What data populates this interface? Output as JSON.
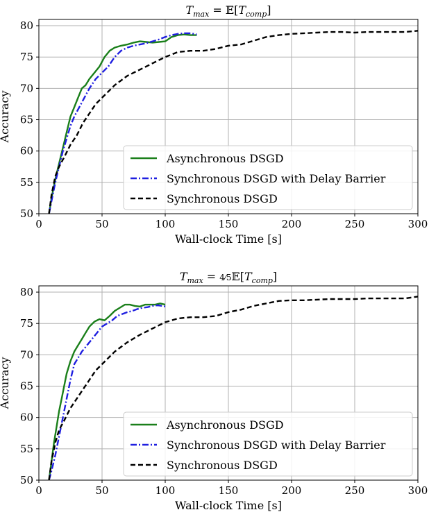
{
  "chart_data": [
    {
      "type": "line",
      "title": "T_max = 𝔼[T_comp]",
      "xlabel": "Wall-clock Time [s]",
      "ylabel": "Accuracy",
      "xlim": [
        0,
        300
      ],
      "ylim": [
        50,
        81
      ],
      "xticks": [
        0,
        50,
        100,
        150,
        200,
        250,
        300
      ],
      "yticks": [
        50,
        55,
        60,
        65,
        70,
        75,
        80
      ],
      "grid": true,
      "legend_position": "lower-right",
      "series": [
        {
          "name": "Asynchronous DSGD",
          "color": "#1a7f1a",
          "style": "solid",
          "x": [
            8,
            10,
            13,
            16,
            19,
            22,
            25,
            28,
            31,
            34,
            37,
            40,
            44,
            48,
            52,
            56,
            60,
            65,
            70,
            75,
            80,
            85,
            90,
            95,
            100,
            105,
            110,
            115,
            120,
            125
          ],
          "y": [
            50,
            52.5,
            55.5,
            58,
            60.5,
            63,
            65.5,
            67,
            68.5,
            70,
            70.5,
            71.5,
            72.5,
            73.5,
            75,
            76,
            76.5,
            76.8,
            77,
            77.3,
            77.5,
            77.4,
            77.3,
            77.4,
            77.5,
            78.2,
            78.5,
            78.6,
            78.5,
            78.5
          ]
        },
        {
          "name": "Synchronous DSGD with Delay Barrier",
          "color": "#1f1fe0",
          "style": "dashdot",
          "x": [
            8,
            10,
            13,
            16,
            19,
            22,
            25,
            28,
            32,
            36,
            40,
            45,
            50,
            55,
            60,
            65,
            70,
            75,
            80,
            85,
            90,
            95,
            100,
            105,
            110,
            115,
            120,
            125
          ],
          "y": [
            50,
            52,
            55,
            57.5,
            60,
            62,
            64,
            65.5,
            67,
            68.5,
            70,
            71.5,
            72.5,
            73.5,
            75,
            76,
            76.5,
            76.8,
            77,
            77.2,
            77.5,
            77.8,
            78.2,
            78.5,
            78.7,
            78.8,
            78.8,
            78.6
          ]
        },
        {
          "name": "Synchronous DSGD",
          "color": "#000000",
          "style": "dashed",
          "x": [
            8,
            10,
            13,
            16,
            20,
            25,
            30,
            35,
            40,
            45,
            50,
            60,
            70,
            80,
            90,
            100,
            110,
            120,
            130,
            140,
            150,
            160,
            170,
            180,
            190,
            200,
            210,
            220,
            230,
            240,
            250,
            260,
            270,
            280,
            290,
            300
          ],
          "y": [
            50,
            53,
            56,
            57.5,
            59,
            61,
            62.5,
            64.5,
            66,
            67.5,
            68.5,
            70.5,
            72,
            73,
            74,
            75,
            75.8,
            76,
            76,
            76.3,
            76.8,
            77,
            77.6,
            78.2,
            78.5,
            78.7,
            78.8,
            78.9,
            79,
            79,
            78.9,
            79,
            79,
            79,
            79,
            79.2
          ]
        }
      ]
    },
    {
      "type": "line",
      "title": "T_max = 4/5 𝔼[T_comp]",
      "xlabel": "Wall-clock Time [s]",
      "ylabel": "Accuracy",
      "xlim": [
        0,
        300
      ],
      "ylim": [
        50,
        81
      ],
      "xticks": [
        0,
        50,
        100,
        150,
        200,
        250,
        300
      ],
      "yticks": [
        50,
        55,
        60,
        65,
        70,
        75,
        80
      ],
      "grid": true,
      "legend_position": "lower-right",
      "series": [
        {
          "name": "Asynchronous DSGD",
          "color": "#1a7f1a",
          "style": "solid",
          "x": [
            8,
            10,
            12,
            14,
            16,
            18,
            20,
            22,
            25,
            28,
            31,
            34,
            37,
            40,
            44,
            48,
            52,
            56,
            60,
            64,
            68,
            72,
            76,
            80,
            84,
            88,
            92,
            96,
            100
          ],
          "y": [
            50,
            53,
            56,
            58.5,
            61,
            63,
            65,
            67,
            69,
            70.5,
            71.5,
            72.5,
            73.5,
            74.5,
            75.3,
            75.7,
            75.5,
            76.2,
            77,
            77.5,
            78,
            78,
            77.8,
            77.7,
            78,
            78,
            78,
            78.2,
            78
          ]
        },
        {
          "name": "Synchronous DSGD with Delay Barrier",
          "color": "#1f1fe0",
          "style": "dashdot",
          "x": [
            8,
            10,
            13,
            16,
            19,
            22,
            25,
            28,
            31,
            34,
            38,
            42,
            46,
            50,
            54,
            58,
            62,
            66,
            70,
            74,
            78,
            82,
            86,
            90,
            94,
            98,
            100
          ],
          "y": [
            50,
            51.5,
            54,
            57,
            60,
            63,
            66,
            68.5,
            69.5,
            70.5,
            71.5,
            72.5,
            73.5,
            74.5,
            75,
            75.5,
            76.2,
            76.5,
            76.8,
            77,
            77.3,
            77.5,
            77.6,
            77.8,
            77.9,
            77.8,
            77.7
          ]
        },
        {
          "name": "Synchronous DSGD",
          "color": "#000000",
          "style": "dashed",
          "x": [
            8,
            10,
            13,
            16,
            20,
            25,
            30,
            35,
            40,
            45,
            50,
            60,
            70,
            80,
            90,
            100,
            110,
            120,
            130,
            140,
            150,
            160,
            170,
            180,
            190,
            200,
            210,
            220,
            230,
            240,
            250,
            260,
            270,
            280,
            290,
            300
          ],
          "y": [
            50,
            53,
            56,
            58,
            59.5,
            61.5,
            63,
            64.5,
            66,
            67.5,
            68.5,
            70.5,
            72,
            73.2,
            74.2,
            75.2,
            75.8,
            76,
            76,
            76.2,
            76.8,
            77.2,
            77.8,
            78.2,
            78.6,
            78.7,
            78.7,
            78.8,
            78.9,
            78.9,
            78.9,
            79,
            79,
            79,
            79,
            79.3
          ]
        }
      ]
    }
  ]
}
